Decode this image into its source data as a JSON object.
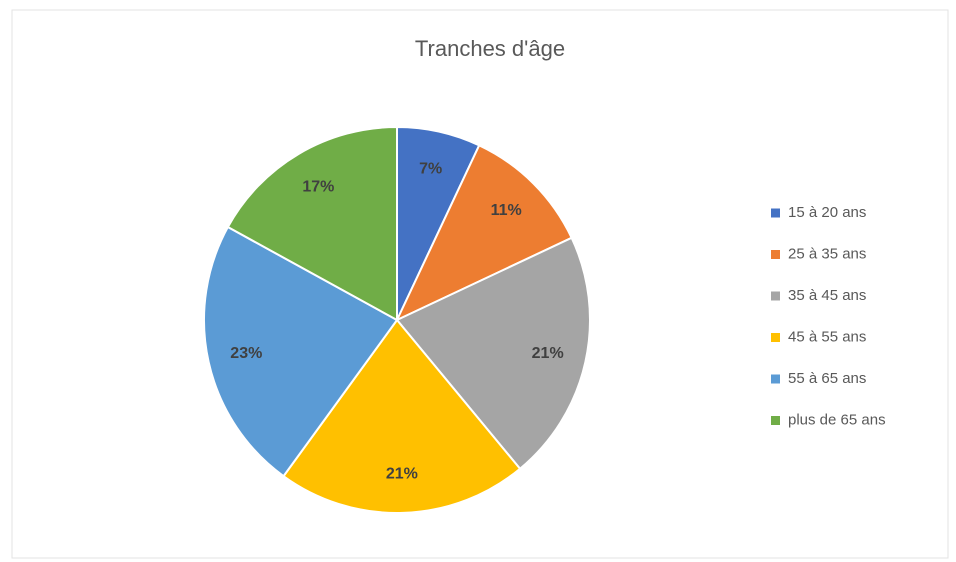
{
  "chart_data": {
    "type": "pie",
    "title": "Tranches d'âge",
    "categories": [
      "15 à 20 ans",
      "25 à 35 ans",
      "35 à 45 ans",
      "45 à 55 ans",
      "55 à 65 ans",
      "plus de 65 ans"
    ],
    "values": [
      7,
      11,
      21,
      21,
      23,
      17
    ],
    "value_labels": [
      "7%",
      "11%",
      "21%",
      "21%",
      "23%",
      "17%"
    ],
    "colors": [
      "#4472c4",
      "#ed7d31",
      "#a5a5a5",
      "#ffc000",
      "#5b9bd5",
      "#70ad47"
    ],
    "legend": "right"
  }
}
